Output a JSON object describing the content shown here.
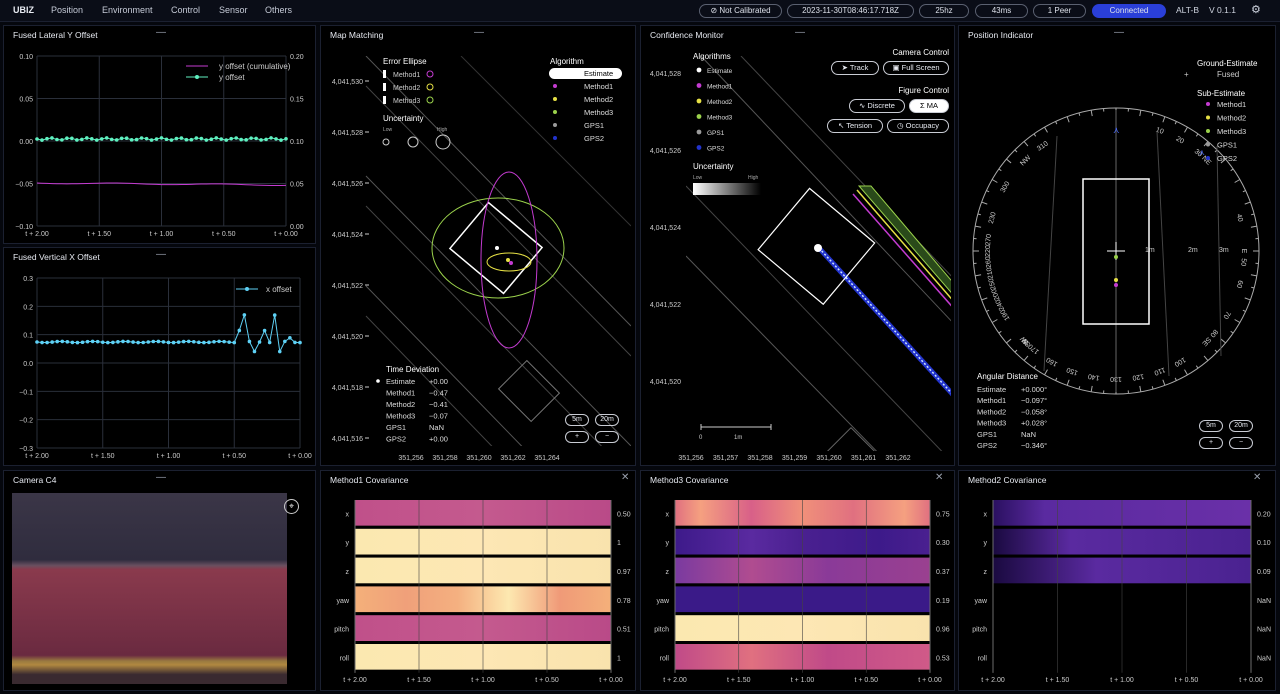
{
  "topbar": {
    "brand": "UBIZ",
    "menus": [
      "Position",
      "Environment",
      "Control",
      "Sensor",
      "Others"
    ],
    "calibration": "Not Calibrated",
    "timestamp": "2023-11-30T08:46:17.718Z",
    "rate": "25hz",
    "latency": "43ms",
    "peers": "1 Peer",
    "connection": "Connected",
    "device": "ALT-B",
    "version": "V 0.1.1"
  },
  "colors": {
    "accent": "#2a3fd8",
    "method1": "#c43bd1",
    "method2": "#e6e045",
    "method3": "#9bd24c",
    "gps1": "#9a9a9a",
    "gps2": "#2233cc",
    "teal": "#5ff0c0",
    "cyan": "#5ed1f5"
  },
  "panels": {
    "lateral": {
      "title": "Fused Lateral Y Offset",
      "legend": [
        "y offset (cumulative)",
        "y offset"
      ],
      "y_left": [
        "0.10",
        "0.05",
        "0.00",
        "−0.05",
        "−0.10"
      ],
      "y_right": [
        "0.20",
        "0.15",
        "0.10",
        "0.05",
        "0.00"
      ],
      "x_ticks": [
        "t + 2.00",
        "t + 1.50",
        "t + 1.00",
        "t + 0.50",
        "t + 0.00"
      ]
    },
    "vertical": {
      "title": "Fused Vertical X Offset",
      "legend": [
        "x offset"
      ],
      "y_ticks": [
        "0.3",
        "0.2",
        "0.1",
        "0.0",
        "−0.1",
        "−0.2",
        "−0.3"
      ],
      "x_ticks": [
        "t + 2.00",
        "t + 1.50",
        "t + 1.00",
        "t + 0.50",
        "t + 0.00"
      ]
    },
    "map": {
      "title": "Map Matching",
      "error_ellipse": "Error Ellipse",
      "ellipse_items": [
        "Method1",
        "Method2",
        "Method3"
      ],
      "uncertainty": "Uncertainty",
      "unc_low": "Low",
      "unc_high": "High",
      "algorithm": "Algorithm",
      "alg_items": [
        "Estimate",
        "Method1",
        "Method2",
        "Method3",
        "GPS1",
        "GPS2"
      ],
      "time_dev": "Time Deviation",
      "time_rows": [
        [
          "Estimate",
          "+0.00"
        ],
        [
          "Method1",
          "−0.47"
        ],
        [
          "Method2",
          "−0.41"
        ],
        [
          "Method3",
          "−0.07"
        ],
        [
          "GPS1",
          "NaN"
        ],
        [
          "GPS2",
          "+0.00"
        ]
      ],
      "y_ticks": [
        "4,041,530",
        "4,041,528",
        "4,041,526",
        "4,041,524",
        "4,041,522",
        "4,041,520",
        "4,041,518",
        "4,041,516"
      ],
      "x_ticks": [
        "351,256",
        "351,258",
        "351,260",
        "351,262",
        "351,264"
      ],
      "zoom": [
        "5m",
        "20m",
        "+",
        "−"
      ]
    },
    "confidence": {
      "title": "Confidence Monitor",
      "algorithms": "Algorithms",
      "items": [
        "Estimate",
        "Method1",
        "Method2",
        "Method3",
        "GPS1",
        "GPS2"
      ],
      "uncertainty": "Uncertainty",
      "unc_low": "Low",
      "unc_high": "High",
      "camera_control": "Camera Control",
      "track": "Track",
      "fullscreen": "Full Screen",
      "figure_control": "Figure Control",
      "discrete": "Discrete",
      "ma": "MA",
      "tension": "Tension",
      "occupancy": "Occupacy",
      "y_ticks": [
        "4,041,528",
        "4,041,526",
        "4,041,524",
        "4,041,522",
        "4,041,520"
      ],
      "x_ticks": [
        "351,256",
        "351,257",
        "351,258",
        "351,259",
        "351,260",
        "351,261",
        "351,262"
      ],
      "scale": [
        "0",
        "1m"
      ]
    },
    "position": {
      "title": "Position Indicator",
      "ground": "Ground-Estimate",
      "fused": "Fused",
      "sub": "Sub-Estimate",
      "sub_items": [
        "Method1",
        "Method2",
        "Method3",
        "GPS1",
        "GPS2"
      ],
      "angular": "Angular Distance",
      "ang_rows": [
        [
          "Estimate",
          "+0.000°"
        ],
        [
          "Method1",
          "−0.097°"
        ],
        [
          "Method2",
          "−0.058°"
        ],
        [
          "Method3",
          "+0.028°"
        ],
        [
          "GPS1",
          "NaN"
        ],
        [
          "GPS2",
          "−0.346°"
        ]
      ],
      "compass_labels": [
        "NW",
        "300",
        "310",
        "NE",
        "10",
        "20",
        "30",
        "E",
        "50",
        "60",
        "SE",
        "100",
        "110",
        "130",
        "140",
        "S",
        "150",
        "170",
        "SW",
        "190",
        "200",
        "210",
        "220",
        "W",
        "240",
        "250",
        "260",
        "270",
        "80",
        "40",
        "160",
        "230",
        "70",
        "120"
      ],
      "rings": [
        "1m",
        "2m",
        "3m"
      ],
      "zoom": [
        "5m",
        "20m",
        "+",
        "−"
      ]
    },
    "camera": {
      "title": "Camera C4"
    },
    "cov1": {
      "title": "Method1 Covariance",
      "rows": [
        "x",
        "y",
        "z",
        "yaw",
        "pitch",
        "roll"
      ],
      "values": [
        "0.50",
        "1",
        "0.97",
        "0.78",
        "0.51",
        "1"
      ],
      "x_ticks": [
        "t + 2.00",
        "t + 1.50",
        "t + 1.00",
        "t + 0.50",
        "t + 0.00"
      ]
    },
    "cov3": {
      "title": "Method3 Covariance",
      "rows": [
        "x",
        "y",
        "z",
        "yaw",
        "pitch",
        "roll"
      ],
      "values": [
        "0.75",
        "0.30",
        "0.37",
        "0.19",
        "0.96",
        "0.53"
      ],
      "x_ticks": [
        "t + 2.00",
        "t + 1.50",
        "t + 1.00",
        "t + 0.50",
        "t + 0.00"
      ]
    },
    "cov2": {
      "title": "Method2 Covariance",
      "rows": [
        "x",
        "y",
        "z",
        "yaw",
        "pitch",
        "roll"
      ],
      "values": [
        "0.20",
        "0.10",
        "0.09",
        "NaN",
        "NaN",
        "NaN"
      ],
      "x_ticks": [
        "t + 2.00",
        "t + 1.50",
        "t + 1.00",
        "t + 0.50",
        "t + 0.00"
      ]
    }
  }
}
